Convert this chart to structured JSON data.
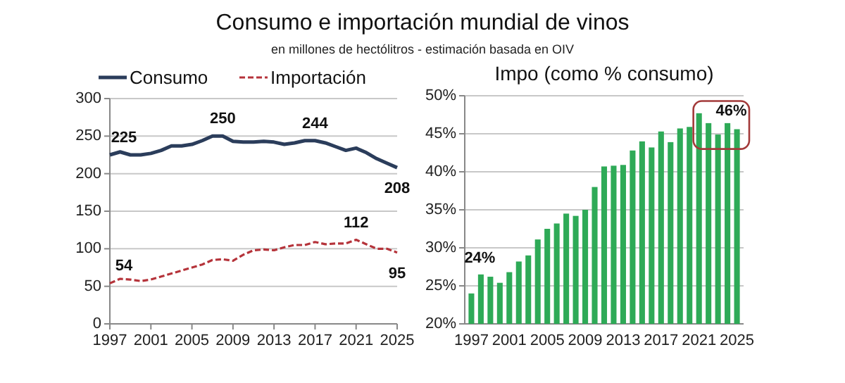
{
  "chart_data": [
    {
      "type": "line",
      "title": "Consumo e importación mundial de vinos",
      "subtitle": "en millones de hectólitros - estimación basada en OIV",
      "x": [
        1997,
        1998,
        1999,
        2000,
        2001,
        2002,
        2003,
        2004,
        2005,
        2006,
        2007,
        2008,
        2009,
        2010,
        2011,
        2012,
        2013,
        2014,
        2015,
        2016,
        2017,
        2018,
        2019,
        2020,
        2021,
        2022,
        2023,
        2024,
        2025
      ],
      "series": [
        {
          "name": "Consumo",
          "color": "#2b3d5b",
          "line_style": "solid",
          "values": [
            225,
            229,
            225,
            225,
            227,
            231,
            237,
            237,
            239,
            244,
            250,
            250,
            243,
            242,
            242,
            243,
            242,
            239,
            241,
            244,
            244,
            241,
            236,
            231,
            234,
            228,
            220,
            214,
            208
          ],
          "value_labels": [
            "225",
            null,
            null,
            null,
            null,
            null,
            null,
            null,
            null,
            null,
            null,
            "250",
            null,
            null,
            null,
            null,
            null,
            null,
            null,
            null,
            "244",
            null,
            null,
            null,
            null,
            null,
            null,
            null,
            "208"
          ]
        },
        {
          "name": "Importación",
          "color": "#b5333a",
          "line_style": "dashed",
          "values": [
            54,
            60,
            59,
            57,
            59,
            63,
            67,
            71,
            75,
            79,
            85,
            86,
            84,
            92,
            98,
            99,
            98,
            102,
            105,
            105,
            109,
            106,
            107,
            107,
            112,
            106,
            100,
            100,
            95
          ],
          "value_labels": [
            "54",
            null,
            null,
            null,
            null,
            null,
            null,
            null,
            null,
            null,
            null,
            null,
            null,
            null,
            null,
            null,
            null,
            null,
            null,
            null,
            null,
            null,
            null,
            null,
            "112",
            null,
            null,
            null,
            "95"
          ]
        }
      ],
      "xlim": [
        1997,
        2025
      ],
      "xticks": [
        1997,
        2001,
        2005,
        2009,
        2013,
        2017,
        2021,
        2025
      ],
      "ylim": [
        0,
        300
      ],
      "yticks": [
        0,
        50,
        100,
        150,
        200,
        250,
        300
      ],
      "grid": "y",
      "legend": "top"
    },
    {
      "type": "bar",
      "title": "Impo (como % consumo)",
      "categories": [
        "1997",
        null,
        null,
        null,
        "2001",
        null,
        null,
        null,
        "2005",
        null,
        null,
        null,
        "2009",
        null,
        null,
        null,
        "2013",
        null,
        null,
        null,
        "2017",
        null,
        null,
        null,
        "2021",
        null,
        null,
        null,
        "2025"
      ],
      "values": [
        24,
        26.5,
        26.2,
        25.4,
        26.8,
        28.2,
        29,
        31.1,
        32.5,
        33.2,
        34.5,
        34.2,
        35,
        38,
        40.7,
        40.8,
        40.9,
        42.8,
        44,
        43.2,
        45.3,
        43.9,
        45.7,
        45.9,
        47.7,
        46.4,
        44.9,
        46.4,
        45.6
      ],
      "value_labels": [
        "24%",
        null,
        null,
        null,
        null,
        null,
        null,
        null,
        null,
        null,
        null,
        null,
        null,
        null,
        null,
        null,
        null,
        null,
        null,
        null,
        null,
        null,
        null,
        null,
        null,
        null,
        null,
        null,
        "46%"
      ],
      "color": "#2eaa57",
      "ylim": [
        20,
        50
      ],
      "yticks": [
        {
          "value": 20,
          "label": "20%"
        },
        {
          "value": 25,
          "label": "25%"
        },
        {
          "value": 30,
          "label": "30%"
        },
        {
          "value": 35,
          "label": "35%"
        },
        {
          "value": 40,
          "label": "40%"
        },
        {
          "value": 45,
          "label": "45%"
        },
        {
          "value": 50,
          "label": "50%"
        }
      ],
      "grid": "y"
    }
  ]
}
